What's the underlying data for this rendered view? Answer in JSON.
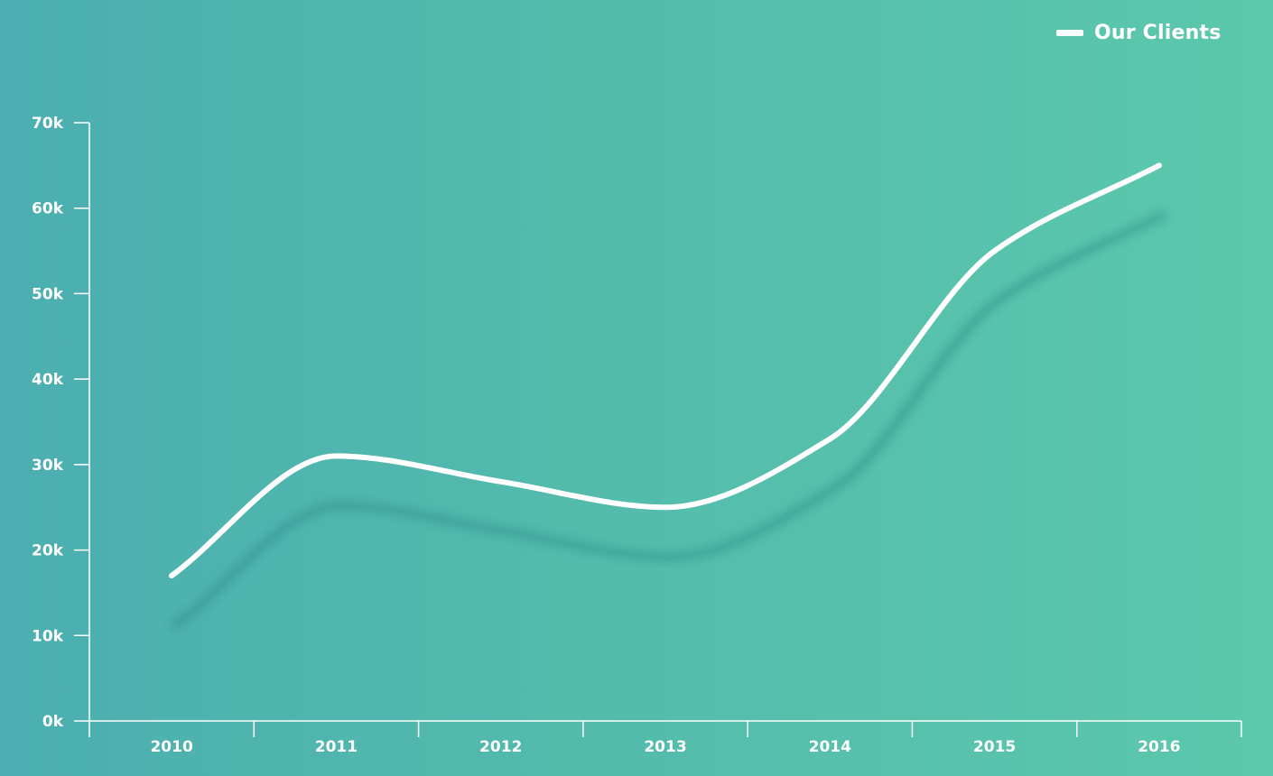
{
  "chart_data": {
    "type": "line",
    "title": "",
    "xlabel": "",
    "ylabel": "",
    "categories": [
      "2010",
      "2011",
      "2012",
      "2013",
      "2014",
      "2015",
      "2016"
    ],
    "series": [
      {
        "name": "Our Clients",
        "values": [
          17000,
          31000,
          28000,
          25000,
          33000,
          55000,
          65000
        ]
      }
    ],
    "ylim": [
      0,
      70000
    ],
    "y_ticks": [
      0,
      10000,
      20000,
      30000,
      40000,
      50000,
      60000,
      70000
    ],
    "y_tick_labels": [
      "0k",
      "10k",
      "20k",
      "30k",
      "40k",
      "50k",
      "60k",
      "70k"
    ],
    "grid": false,
    "legend": {
      "label": "Our Clients",
      "position": "top-right"
    },
    "colors": {
      "line": "#ffffff",
      "shadow": "#2f8c8a",
      "axis": "#ffffff"
    }
  }
}
